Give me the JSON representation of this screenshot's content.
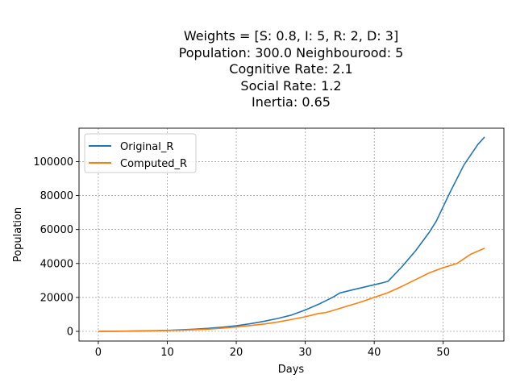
{
  "chart_data": {
    "type": "line",
    "title_lines": [
      "Weights = [S: 0.8, I: 5, R: 2, D: 3]",
      "Population: 300.0  Neighbourood: 5",
      "Cognitive Rate: 2.1",
      "Social Rate: 1.2",
      "Inertia: 0.65"
    ],
    "xlabel": "Days",
    "ylabel": "Population",
    "xlim": [
      -2.8,
      58.8
    ],
    "ylim": [
      -5700,
      119700
    ],
    "xticks": [
      0,
      10,
      20,
      30,
      40,
      50
    ],
    "yticks": [
      0,
      20000,
      40000,
      60000,
      80000,
      100000
    ],
    "grid": true,
    "legend_position": "top-left",
    "series": [
      {
        "name": "Original_R",
        "color": "#1f77b4",
        "x": [
          0,
          2,
          4,
          6,
          8,
          10,
          12,
          14,
          16,
          18,
          20,
          22,
          24,
          26,
          28,
          30,
          32,
          34,
          35,
          37,
          39,
          41,
          42,
          44,
          46,
          48,
          49,
          51,
          53,
          55,
          56
        ],
        "y": [
          0,
          60,
          150,
          250,
          400,
          600,
          900,
          1300,
          1800,
          2500,
          3300,
          4500,
          5900,
          7600,
          9600,
          12600,
          16100,
          20100,
          22600,
          24600,
          26500,
          28400,
          29500,
          38000,
          47500,
          58500,
          65000,
          82000,
          98000,
          110000,
          114500
        ]
      },
      {
        "name": "Computed_R",
        "color": "#ff7f0e",
        "x": [
          0,
          2,
          4,
          6,
          8,
          10,
          12,
          14,
          16,
          18,
          20,
          22,
          24,
          26,
          28,
          30,
          32,
          33,
          34,
          36,
          38,
          40,
          42,
          44,
          46,
          48,
          50,
          52,
          54,
          56
        ],
        "y": [
          0,
          40,
          100,
          200,
          300,
          500,
          700,
          1000,
          1300,
          1900,
          2600,
          3400,
          4300,
          5500,
          7000,
          8600,
          10600,
          11100,
          12300,
          14800,
          17200,
          20000,
          22800,
          26500,
          30500,
          34500,
          37500,
          40000,
          45500,
          49000
        ]
      }
    ]
  }
}
